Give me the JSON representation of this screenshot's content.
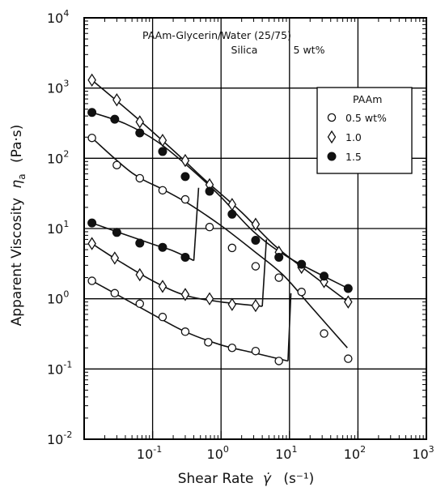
{
  "chart_data": {
    "type": "scatter",
    "x_scale": "log",
    "y_scale": "log",
    "xlim": [
      0.01,
      1000
    ],
    "ylim": [
      0.01,
      10000
    ],
    "grid": true,
    "legend_placement": "top-right",
    "x_ticks": [
      {
        "base": "10",
        "exp": "-1",
        "value": 0.1
      },
      {
        "base": "10",
        "exp": "0",
        "value": 1
      },
      {
        "base": "10",
        "exp": "1",
        "value": 10
      },
      {
        "base": "10",
        "exp": "2",
        "value": 100
      },
      {
        "base": "10",
        "exp": "3",
        "value": 1000
      }
    ],
    "y_ticks": [
      {
        "base": "10",
        "exp": "-2",
        "value": 0.01
      },
      {
        "base": "10",
        "exp": "-1",
        "value": 0.1
      },
      {
        "base": "10",
        "exp": "0",
        "value": 1
      },
      {
        "base": "10",
        "exp": "1",
        "value": 10
      },
      {
        "base": "10",
        "exp": "2",
        "value": 100
      },
      {
        "base": "10",
        "exp": "3",
        "value": 1000
      },
      {
        "base": "10",
        "exp": "4",
        "value": 10000
      }
    ],
    "xlabel": {
      "text": "Shear Rate",
      "symbol": "γ̇",
      "unit": "(s⁻¹)"
    },
    "ylabel": {
      "text": "Apparent Viscosity",
      "symbol": "η",
      "sub": "a",
      "unit": "(Pa·s)"
    },
    "annotations": [
      {
        "text": "PAAm-Glycerin/Water (25/75)"
      },
      {
        "text": "Silica"
      },
      {
        "text": "5 wt%"
      }
    ],
    "legend": {
      "title": "PAAm",
      "entries": [
        {
          "label": "0.5 wt%",
          "marker": "open-circle"
        },
        {
          "label": "1.0",
          "marker": "open-diamond"
        },
        {
          "label": "1.5",
          "marker": "filled-circle"
        }
      ]
    },
    "series": [
      {
        "name": "0.5 wt%",
        "marker": "open-circle",
        "low_branch": [
          [
            0.013,
            1.8
          ],
          [
            0.028,
            1.2
          ],
          [
            0.065,
            0.85
          ],
          [
            0.14,
            0.55
          ],
          [
            0.3,
            0.34
          ],
          [
            0.65,
            0.24
          ],
          [
            1.45,
            0.2
          ],
          [
            3.2,
            0.18
          ],
          [
            7.0,
            0.13
          ]
        ],
        "high_branch": [
          [
            0.013,
            195
          ],
          [
            0.03,
            80
          ],
          [
            0.065,
            52
          ],
          [
            0.14,
            35
          ],
          [
            0.3,
            26
          ],
          [
            0.68,
            10.5
          ],
          [
            1.45,
            5.3
          ],
          [
            3.2,
            2.9
          ],
          [
            7.0,
            2.0
          ],
          [
            15,
            1.25
          ],
          [
            32,
            0.32
          ],
          [
            72,
            0.14
          ]
        ],
        "low_curve": [
          [
            0.013,
            1.8
          ],
          [
            0.03,
            1.15
          ],
          [
            0.1,
            0.6
          ],
          [
            0.3,
            0.34
          ],
          [
            1.0,
            0.22
          ],
          [
            3.0,
            0.17
          ],
          [
            9.5,
            0.13
          ]
        ],
        "jump": [
          [
            9.5,
            0.13
          ],
          [
            10.5,
            1.2
          ]
        ],
        "high_curve": [
          [
            0.013,
            195
          ],
          [
            0.05,
            62
          ],
          [
            0.15,
            35
          ],
          [
            0.35,
            22
          ],
          [
            1.0,
            11
          ],
          [
            3.0,
            4.8
          ],
          [
            8.0,
            2.2
          ],
          [
            20,
            0.8
          ],
          [
            70,
            0.2
          ]
        ]
      },
      {
        "name": "1.0",
        "marker": "open-diamond",
        "low_branch": [
          [
            0.013,
            6.1
          ],
          [
            0.028,
            3.8
          ],
          [
            0.065,
            2.2
          ],
          [
            0.14,
            1.5
          ],
          [
            0.3,
            1.15
          ],
          [
            0.68,
            1.0
          ],
          [
            1.45,
            0.83
          ],
          [
            3.2,
            0.8
          ]
        ],
        "high_branch": [
          [
            0.013,
            1300
          ],
          [
            0.03,
            680
          ],
          [
            0.065,
            330
          ],
          [
            0.14,
            180
          ],
          [
            0.3,
            93
          ],
          [
            0.68,
            42
          ],
          [
            1.45,
            22
          ],
          [
            3.2,
            11.5
          ],
          [
            7.0,
            4.6
          ],
          [
            15,
            2.8
          ],
          [
            32,
            1.75
          ],
          [
            72,
            0.9
          ]
        ],
        "low_curve": [
          [
            0.013,
            6.1
          ],
          [
            0.03,
            3.6
          ],
          [
            0.1,
            1.8
          ],
          [
            0.3,
            1.12
          ],
          [
            1.0,
            0.9
          ],
          [
            4.0,
            0.78
          ]
        ],
        "jump": [
          [
            4.0,
            0.78
          ],
          [
            4.6,
            7.0
          ]
        ],
        "high_curve": [
          [
            0.013,
            1300
          ],
          [
            0.05,
            430
          ],
          [
            0.2,
            130
          ],
          [
            0.6,
            48
          ],
          [
            2.0,
            17
          ],
          [
            6.0,
            5.8
          ],
          [
            20,
            2.3
          ],
          [
            72,
            0.9
          ]
        ]
      },
      {
        "name": "1.5",
        "marker": "filled-circle",
        "low_branch": [
          [
            0.013,
            12
          ],
          [
            0.03,
            8.8
          ],
          [
            0.065,
            6.2
          ],
          [
            0.14,
            5.4
          ],
          [
            0.3,
            3.9
          ]
        ],
        "high_branch": [
          [
            0.013,
            450
          ],
          [
            0.028,
            360
          ],
          [
            0.065,
            230
          ],
          [
            0.14,
            125
          ],
          [
            0.3,
            55
          ],
          [
            0.68,
            34
          ],
          [
            1.45,
            16
          ],
          [
            3.2,
            6.8
          ],
          [
            7.0,
            3.9
          ],
          [
            15,
            3.1
          ],
          [
            32,
            2.1
          ],
          [
            72,
            1.4
          ]
        ],
        "low_curve": [
          [
            0.013,
            12
          ],
          [
            0.03,
            9.0
          ],
          [
            0.1,
            6.0
          ],
          [
            0.2,
            4.8
          ],
          [
            0.4,
            3.5
          ]
        ],
        "jump": [
          [
            0.4,
            3.5
          ],
          [
            0.47,
            38
          ]
        ],
        "high_curve": [
          [
            0.013,
            450
          ],
          [
            0.04,
            310
          ],
          [
            0.12,
            170
          ],
          [
            0.4,
            65
          ],
          [
            1.0,
            28
          ],
          [
            3.0,
            9.0
          ],
          [
            10,
            3.8
          ],
          [
            72,
            1.4
          ]
        ]
      }
    ]
  }
}
